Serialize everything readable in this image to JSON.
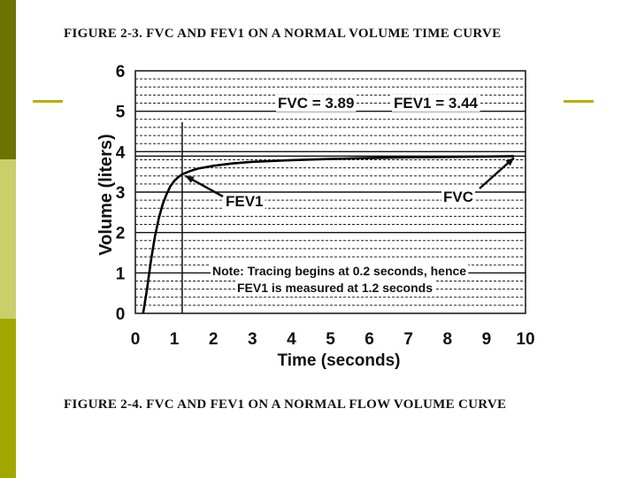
{
  "slide": {
    "title_top": "FIGURE 2-3.  FVC AND FEV1 ON A NORMAL VOLUME TIME CURVE",
    "title_bottom": "FIGURE 2-4.  FVC AND FEV1 ON A NORMAL FLOW VOLUME CURVE",
    "colors": {
      "sidebar_dark": "#6b7400",
      "sidebar_light": "#c9d06a",
      "sidebar_mid": "#a2a800",
      "accent": "#b6b100"
    }
  },
  "chart_data": {
    "type": "line",
    "xlabel": "Time (seconds)",
    "ylabel": "Volume (liters)",
    "xlim": [
      0,
      10
    ],
    "ylim": [
      0,
      6
    ],
    "xticks": [
      "0",
      "1",
      "2",
      "3",
      "4",
      "5",
      "6",
      "7",
      "8",
      "9",
      "10"
    ],
    "yticks": [
      "0",
      "1",
      "2",
      "3",
      "4",
      "5",
      "6"
    ],
    "grid": true,
    "series": [
      {
        "x": [
          0.2,
          0.3,
          0.4,
          0.5,
          0.6,
          0.7,
          0.8,
          0.9,
          1.0,
          1.1,
          1.2,
          1.4,
          1.6,
          2.0,
          2.5,
          3.0,
          4.0,
          5.0,
          6.0,
          7.0,
          8.0,
          9.0,
          9.7
        ],
        "y": [
          0.0,
          0.6,
          1.3,
          1.9,
          2.35,
          2.7,
          2.95,
          3.15,
          3.28,
          3.37,
          3.44,
          3.52,
          3.58,
          3.65,
          3.71,
          3.75,
          3.79,
          3.82,
          3.84,
          3.86,
          3.87,
          3.88,
          3.89
        ]
      }
    ],
    "reference_lines": [
      {
        "axis": "x",
        "value": 1.2
      },
      {
        "axis": "y",
        "value": 3.89
      }
    ],
    "annotations": [
      {
        "id": "fvc_value",
        "text": "FVC = 3.89"
      },
      {
        "id": "fev1_value",
        "text": "FEV1 = 3.44"
      },
      {
        "id": "fev1_label",
        "text": "FEV1",
        "target": [
          1.2,
          3.44
        ]
      },
      {
        "id": "fvc_label",
        "text": "FVC",
        "target": [
          9.7,
          3.89
        ]
      },
      {
        "id": "note_line1",
        "text": "Note: Tracing begins at 0.2 seconds, hence"
      },
      {
        "id": "note_line2",
        "text": "FEV1 is measured at 1.2 seconds"
      }
    ]
  }
}
